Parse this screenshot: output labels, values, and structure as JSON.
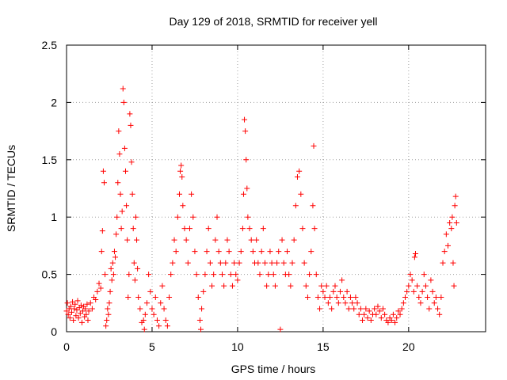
{
  "chart_data": {
    "type": "scatter",
    "title": "Day 129 of 2018, SRMTID for receiver yell",
    "xlabel": "GPS time / hours",
    "ylabel": "SRMTID / TECUs",
    "xlim": [
      0,
      24.5
    ],
    "ylim": [
      0,
      2.5
    ],
    "x_ticks": [
      0,
      5,
      10,
      15,
      20
    ],
    "y_ticks": [
      0,
      0.5,
      1,
      1.5,
      2,
      2.5
    ],
    "x_tick_labels": [
      "0",
      "5",
      "10",
      "15",
      "20"
    ],
    "y_tick_labels": [
      "0",
      "0.5",
      "1",
      "1.5",
      "2",
      "2.5"
    ],
    "grid": true,
    "marker": "+",
    "color": "#ff0000",
    "series": [
      {
        "name": "SRMTID",
        "points": [
          [
            0.0,
            0.18
          ],
          [
            0.05,
            0.25
          ],
          [
            0.1,
            0.15
          ],
          [
            0.15,
            0.2
          ],
          [
            0.2,
            0.12
          ],
          [
            0.25,
            0.22
          ],
          [
            0.3,
            0.17
          ],
          [
            0.35,
            0.26
          ],
          [
            0.4,
            0.1
          ],
          [
            0.45,
            0.2
          ],
          [
            0.5,
            0.24
          ],
          [
            0.55,
            0.14
          ],
          [
            0.6,
            0.19
          ],
          [
            0.65,
            0.27
          ],
          [
            0.7,
            0.12
          ],
          [
            0.75,
            0.21
          ],
          [
            0.8,
            0.16
          ],
          [
            0.85,
            0.23
          ],
          [
            0.9,
            0.08
          ],
          [
            0.95,
            0.18
          ],
          [
            1.0,
            0.22
          ],
          [
            1.05,
            0.13
          ],
          [
            1.1,
            0.2
          ],
          [
            1.15,
            0.15
          ],
          [
            1.2,
            0.24
          ],
          [
            1.25,
            0.1
          ],
          [
            1.3,
            0.18
          ],
          [
            1.4,
            0.25
          ],
          [
            1.5,
            0.2
          ],
          [
            1.6,
            0.3
          ],
          [
            1.7,
            0.28
          ],
          [
            1.8,
            0.35
          ],
          [
            1.9,
            0.42
          ],
          [
            2.0,
            0.38
          ],
          [
            2.05,
            0.7
          ],
          [
            2.1,
            0.88
          ],
          [
            2.15,
            1.4
          ],
          [
            2.2,
            1.3
          ],
          [
            2.25,
            0.5
          ],
          [
            2.3,
            0.05
          ],
          [
            2.35,
            0.1
          ],
          [
            2.4,
            0.2
          ],
          [
            2.45,
            0.15
          ],
          [
            2.5,
            0.25
          ],
          [
            2.55,
            0.35
          ],
          [
            2.6,
            0.55
          ],
          [
            2.65,
            0.45
          ],
          [
            2.7,
            0.6
          ],
          [
            2.75,
            0.5
          ],
          [
            2.8,
            0.7
          ],
          [
            2.85,
            0.65
          ],
          [
            2.9,
            0.85
          ],
          [
            2.95,
            1.0
          ],
          [
            3.0,
            1.3
          ],
          [
            3.05,
            1.75
          ],
          [
            3.1,
            1.55
          ],
          [
            3.15,
            1.2
          ],
          [
            3.2,
            0.9
          ],
          [
            3.25,
            1.05
          ],
          [
            3.3,
            2.12
          ],
          [
            3.35,
            2.0
          ],
          [
            3.4,
            1.6
          ],
          [
            3.45,
            1.4
          ],
          [
            3.5,
            1.1
          ],
          [
            3.55,
            0.8
          ],
          [
            3.6,
            0.3
          ],
          [
            3.65,
            0.5
          ],
          [
            3.7,
            1.9
          ],
          [
            3.75,
            1.8
          ],
          [
            3.8,
            1.48
          ],
          [
            3.85,
            1.2
          ],
          [
            3.9,
            0.9
          ],
          [
            3.95,
            0.6
          ],
          [
            4.0,
            0.45
          ],
          [
            4.05,
            1.0
          ],
          [
            4.1,
            0.8
          ],
          [
            4.15,
            0.55
          ],
          [
            4.2,
            0.3
          ],
          [
            4.3,
            0.2
          ],
          [
            4.4,
            0.08
          ],
          [
            4.5,
            0.1
          ],
          [
            4.55,
            0.02
          ],
          [
            4.6,
            0.15
          ],
          [
            4.7,
            0.25
          ],
          [
            4.8,
            0.5
          ],
          [
            4.9,
            0.35
          ],
          [
            5.0,
            0.2
          ],
          [
            5.1,
            0.15
          ],
          [
            5.2,
            0.3
          ],
          [
            5.3,
            0.1
          ],
          [
            5.4,
            0.05
          ],
          [
            5.5,
            0.25
          ],
          [
            5.6,
            0.4
          ],
          [
            5.7,
            0.2
          ],
          [
            5.8,
            0.1
          ],
          [
            5.9,
            0.05
          ],
          [
            6.0,
            0.3
          ],
          [
            6.1,
            0.5
          ],
          [
            6.2,
            0.6
          ],
          [
            6.3,
            0.8
          ],
          [
            6.4,
            0.7
          ],
          [
            6.5,
            1.0
          ],
          [
            6.6,
            1.2
          ],
          [
            6.65,
            1.4
          ],
          [
            6.7,
            1.45
          ],
          [
            6.75,
            1.35
          ],
          [
            6.8,
            1.1
          ],
          [
            6.9,
            0.9
          ],
          [
            7.0,
            0.8
          ],
          [
            7.1,
            0.6
          ],
          [
            7.2,
            0.9
          ],
          [
            7.3,
            1.2
          ],
          [
            7.4,
            1.0
          ],
          [
            7.5,
            0.7
          ],
          [
            7.6,
            0.5
          ],
          [
            7.7,
            0.3
          ],
          [
            7.8,
            0.1
          ],
          [
            7.85,
            0.02
          ],
          [
            7.9,
            0.2
          ],
          [
            8.0,
            0.35
          ],
          [
            8.1,
            0.5
          ],
          [
            8.2,
            0.7
          ],
          [
            8.3,
            0.9
          ],
          [
            8.4,
            0.6
          ],
          [
            8.5,
            0.4
          ],
          [
            8.6,
            0.5
          ],
          [
            8.7,
            0.8
          ],
          [
            8.8,
            1.0
          ],
          [
            8.9,
            0.7
          ],
          [
            9.0,
            0.6
          ],
          [
            9.1,
            0.5
          ],
          [
            9.2,
            0.4
          ],
          [
            9.3,
            0.6
          ],
          [
            9.4,
            0.8
          ],
          [
            9.5,
            0.7
          ],
          [
            9.6,
            0.5
          ],
          [
            9.7,
            0.4
          ],
          [
            9.8,
            0.6
          ],
          [
            9.9,
            0.5
          ],
          [
            10.0,
            0.45
          ],
          [
            10.1,
            0.6
          ],
          [
            10.2,
            0.7
          ],
          [
            10.3,
            0.9
          ],
          [
            10.35,
            1.2
          ],
          [
            10.4,
            1.85
          ],
          [
            10.45,
            1.75
          ],
          [
            10.5,
            1.5
          ],
          [
            10.55,
            1.25
          ],
          [
            10.6,
            1.0
          ],
          [
            10.7,
            0.9
          ],
          [
            10.8,
            0.8
          ],
          [
            10.9,
            0.7
          ],
          [
            11.0,
            0.6
          ],
          [
            11.1,
            0.8
          ],
          [
            11.2,
            0.6
          ],
          [
            11.3,
            0.5
          ],
          [
            11.4,
            0.7
          ],
          [
            11.5,
            0.9
          ],
          [
            11.6,
            0.6
          ],
          [
            11.7,
            0.4
          ],
          [
            11.8,
            0.5
          ],
          [
            11.9,
            0.7
          ],
          [
            12.0,
            0.6
          ],
          [
            12.1,
            0.5
          ],
          [
            12.2,
            0.4
          ],
          [
            12.3,
            0.6
          ],
          [
            12.4,
            0.7
          ],
          [
            12.5,
            0.02
          ],
          [
            12.6,
            0.8
          ],
          [
            12.7,
            0.6
          ],
          [
            12.8,
            0.5
          ],
          [
            12.9,
            0.7
          ],
          [
            13.0,
            0.5
          ],
          [
            13.1,
            0.4
          ],
          [
            13.2,
            0.6
          ],
          [
            13.3,
            0.8
          ],
          [
            13.4,
            1.1
          ],
          [
            13.5,
            1.35
          ],
          [
            13.6,
            1.4
          ],
          [
            13.7,
            1.2
          ],
          [
            13.8,
            0.9
          ],
          [
            13.9,
            0.6
          ],
          [
            14.0,
            0.4
          ],
          [
            14.1,
            0.3
          ],
          [
            14.2,
            0.5
          ],
          [
            14.3,
            0.7
          ],
          [
            14.4,
            1.1
          ],
          [
            14.45,
            1.62
          ],
          [
            14.5,
            0.9
          ],
          [
            14.6,
            0.5
          ],
          [
            14.7,
            0.3
          ],
          [
            14.8,
            0.2
          ],
          [
            14.9,
            0.4
          ],
          [
            15.0,
            0.35
          ],
          [
            15.1,
            0.3
          ],
          [
            15.2,
            0.4
          ],
          [
            15.3,
            0.25
          ],
          [
            15.4,
            0.3
          ],
          [
            15.5,
            0.2
          ],
          [
            15.6,
            0.35
          ],
          [
            15.7,
            0.4
          ],
          [
            15.8,
            0.3
          ],
          [
            15.9,
            0.25
          ],
          [
            16.0,
            0.35
          ],
          [
            16.1,
            0.45
          ],
          [
            16.2,
            0.3
          ],
          [
            16.3,
            0.25
          ],
          [
            16.4,
            0.35
          ],
          [
            16.5,
            0.2
          ],
          [
            16.6,
            0.3
          ],
          [
            16.7,
            0.25
          ],
          [
            16.8,
            0.2
          ],
          [
            16.9,
            0.3
          ],
          [
            17.0,
            0.25
          ],
          [
            17.1,
            0.15
          ],
          [
            17.2,
            0.2
          ],
          [
            17.3,
            0.1
          ],
          [
            17.4,
            0.15
          ],
          [
            17.5,
            0.2
          ],
          [
            17.6,
            0.12
          ],
          [
            17.7,
            0.18
          ],
          [
            17.8,
            0.1
          ],
          [
            17.9,
            0.15
          ],
          [
            18.0,
            0.2
          ],
          [
            18.1,
            0.15
          ],
          [
            18.2,
            0.22
          ],
          [
            18.3,
            0.18
          ],
          [
            18.4,
            0.12
          ],
          [
            18.5,
            0.2
          ],
          [
            18.6,
            0.15
          ],
          [
            18.7,
            0.1
          ],
          [
            18.8,
            0.08
          ],
          [
            18.9,
            0.12
          ],
          [
            19.0,
            0.1
          ],
          [
            19.1,
            0.15
          ],
          [
            19.2,
            0.08
          ],
          [
            19.3,
            0.12
          ],
          [
            19.4,
            0.18
          ],
          [
            19.5,
            0.15
          ],
          [
            19.6,
            0.2
          ],
          [
            19.7,
            0.25
          ],
          [
            19.8,
            0.3
          ],
          [
            19.9,
            0.35
          ],
          [
            20.0,
            0.4
          ],
          [
            20.1,
            0.5
          ],
          [
            20.2,
            0.45
          ],
          [
            20.3,
            0.35
          ],
          [
            20.35,
            0.65
          ],
          [
            20.4,
            0.68
          ],
          [
            20.5,
            0.4
          ],
          [
            20.6,
            0.3
          ],
          [
            20.7,
            0.25
          ],
          [
            20.8,
            0.35
          ],
          [
            20.9,
            0.5
          ],
          [
            21.0,
            0.4
          ],
          [
            21.1,
            0.3
          ],
          [
            21.2,
            0.2
          ],
          [
            21.3,
            0.45
          ],
          [
            21.4,
            0.35
          ],
          [
            21.5,
            0.25
          ],
          [
            21.6,
            0.3
          ],
          [
            21.7,
            0.2
          ],
          [
            21.8,
            0.15
          ],
          [
            21.9,
            0.3
          ],
          [
            22.0,
            0.6
          ],
          [
            22.1,
            0.7
          ],
          [
            22.2,
            0.85
          ],
          [
            22.3,
            0.75
          ],
          [
            22.4,
            0.95
          ],
          [
            22.5,
            0.9
          ],
          [
            22.55,
            1.0
          ],
          [
            22.6,
            0.6
          ],
          [
            22.65,
            0.4
          ],
          [
            22.7,
            1.1
          ],
          [
            22.75,
            1.18
          ],
          [
            22.8,
            0.95
          ]
        ]
      }
    ]
  }
}
